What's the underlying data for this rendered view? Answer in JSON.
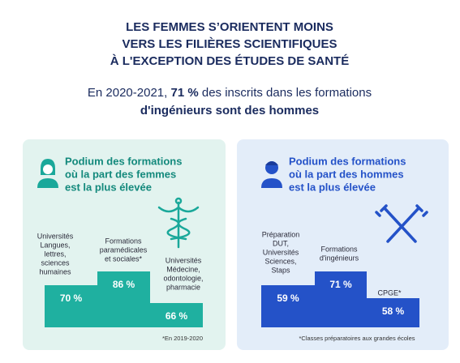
{
  "header": {
    "title_lines": [
      "LES FEMMES S’ORIENTENT MOINS",
      "VERS LES FILIÈRES SCIENTIFIQUES",
      "À L'EXCEPTION DES ÉTUDES DE SANTÉ"
    ],
    "subtitle": {
      "line1_before": "En 2020-2021, ",
      "line1_bold": "71 %",
      "line1_after": " des inscrits dans les formations",
      "line2": "d'ingénieurs sont des hommes"
    }
  },
  "panels": [
    {
      "title_lines": [
        "Podium des formations",
        "où la part des femmes",
        "est la plus élevée"
      ],
      "podium": [
        {
          "label_lines": [
            "Universités",
            "Langues,",
            "lettres,",
            "sciences",
            "humaines"
          ],
          "value": "70 %"
        },
        {
          "label_lines": [
            "Formations",
            "paramédicales",
            "et sociales*"
          ],
          "value": "86 %"
        },
        {
          "label_lines": [
            "Universités",
            "Médecine,",
            "odontologie,",
            "pharmacie"
          ],
          "value": "66 %"
        }
      ],
      "footnote": "*En 2019-2020"
    },
    {
      "title_lines": [
        "Podium des formations",
        "où la part des hommes",
        "est la plus élevée"
      ],
      "podium": [
        {
          "label_lines": [
            "Préparation",
            "DUT,",
            "Universités",
            "Sciences,",
            "Staps"
          ],
          "value": "59 %"
        },
        {
          "label_lines": [
            "Formations",
            "d'ingénieurs"
          ],
          "value": "71 %"
        },
        {
          "label_lines": [
            "CPGE*"
          ],
          "value": "58 %"
        }
      ],
      "footnote": "*Classes préparatoires aux grandes écoles"
    }
  ]
}
